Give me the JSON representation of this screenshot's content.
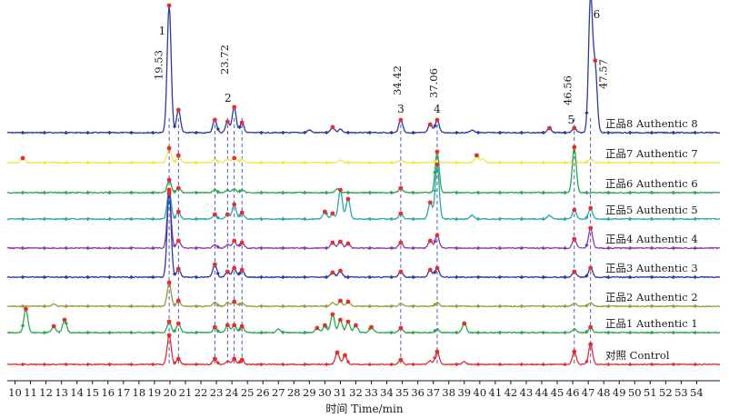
{
  "chart_data": {
    "type": "line",
    "xlabel": "时间 Time/min",
    "xlim": [
      9.5,
      55.5
    ],
    "xticks": [
      10,
      11,
      12,
      13,
      14,
      15,
      16,
      17,
      18,
      19,
      20,
      21,
      22,
      23,
      24,
      25,
      26,
      27,
      28,
      29,
      30,
      31,
      32,
      33,
      34,
      35,
      36,
      37,
      38,
      39,
      40,
      41,
      42,
      43,
      44,
      45,
      46,
      47,
      48,
      49,
      50,
      51,
      52,
      53,
      54
    ],
    "marked_retention_times": [
      {
        "peak": "1",
        "rt": 19.53,
        "label": "19.53"
      },
      {
        "peak": "2",
        "rt": 23.72,
        "label": "23.72"
      },
      {
        "peak": "3",
        "rt": 34.42,
        "label": "34.42"
      },
      {
        "peak": "4",
        "rt": 37.06,
        "label": "37.06"
      },
      {
        "peak": "5",
        "rt": 46.56,
        "label": "46.56"
      },
      {
        "peak": "6",
        "rt": 47.57,
        "label": "47.57"
      }
    ],
    "dashed_guides_at": [
      19.95,
      20.55,
      22.9,
      23.72,
      24.15,
      24.65,
      34.9,
      37.25,
      46.1,
      47.15
    ],
    "series": [
      {
        "name": "正品8 Authentic 8",
        "color": "#2e3a9c",
        "peaks": [
          [
            19.95,
            140
          ],
          [
            20.55,
            25
          ],
          [
            22.9,
            14
          ],
          [
            23.72,
            12
          ],
          [
            24.15,
            28
          ],
          [
            24.65,
            11
          ],
          [
            29.0,
            3
          ],
          [
            30.5,
            6
          ],
          [
            31.0,
            4
          ],
          [
            34.9,
            14
          ],
          [
            36.8,
            9
          ],
          [
            37.25,
            14
          ],
          [
            39.5,
            3
          ],
          [
            44.5,
            5
          ],
          [
            46.1,
            5
          ],
          [
            47.15,
            150
          ],
          [
            47.45,
            70
          ]
        ]
      },
      {
        "name": "正品7 Authentic 7",
        "color": "#f2e64a",
        "peaks": [
          [
            10.5,
            5
          ],
          [
            19.95,
            16
          ],
          [
            20.55,
            8
          ],
          [
            22.9,
            4
          ],
          [
            23.72,
            4
          ],
          [
            24.15,
            5
          ],
          [
            24.65,
            4
          ],
          [
            31.0,
            3
          ],
          [
            34.9,
            3
          ],
          [
            37.25,
            3
          ],
          [
            39.8,
            8
          ],
          [
            40.2,
            4
          ],
          [
            46.1,
            3
          ],
          [
            47.15,
            4
          ]
        ]
      },
      {
        "name": "正品6 Authentic 6",
        "color": "#2aa84a",
        "peaks": [
          [
            19.95,
            14
          ],
          [
            20.55,
            5
          ],
          [
            22.9,
            3
          ],
          [
            23.72,
            3
          ],
          [
            24.15,
            4
          ],
          [
            24.65,
            3
          ],
          [
            30.8,
            4
          ],
          [
            34.9,
            5
          ],
          [
            37.25,
            45
          ],
          [
            46.1,
            50
          ]
        ]
      },
      {
        "name": "正品5 Authentic 5",
        "color": "#2aa8b0",
        "peaks": [
          [
            19.95,
            32
          ],
          [
            20.55,
            8
          ],
          [
            22.9,
            5
          ],
          [
            23.72,
            5
          ],
          [
            24.15,
            16
          ],
          [
            24.65,
            7
          ],
          [
            30.0,
            8
          ],
          [
            30.5,
            6
          ],
          [
            31.0,
            32
          ],
          [
            31.5,
            22
          ],
          [
            34.9,
            6
          ],
          [
            36.8,
            18
          ],
          [
            37.25,
            60
          ],
          [
            39.5,
            4
          ],
          [
            44.5,
            4
          ],
          [
            46.1,
            10
          ],
          [
            47.15,
            12
          ]
        ]
      },
      {
        "name": "正品4 Authentic 4",
        "color": "#8e3aa8",
        "peaks": [
          [
            19.95,
            60
          ],
          [
            20.55,
            8
          ],
          [
            22.9,
            4
          ],
          [
            23.72,
            4
          ],
          [
            24.15,
            8
          ],
          [
            24.65,
            6
          ],
          [
            30.5,
            6
          ],
          [
            31.0,
            7
          ],
          [
            31.5,
            5
          ],
          [
            34.9,
            6
          ],
          [
            36.8,
            8
          ],
          [
            37.25,
            14
          ],
          [
            46.1,
            10
          ],
          [
            47.15,
            22
          ]
        ]
      },
      {
        "name": "正品3 Authentic 3",
        "color": "#2e3a9c",
        "peaks": [
          [
            19.95,
            95
          ],
          [
            20.55,
            9
          ],
          [
            22.9,
            14
          ],
          [
            23.72,
            6
          ],
          [
            24.15,
            10
          ],
          [
            24.65,
            8
          ],
          [
            30.5,
            5
          ],
          [
            31.0,
            7
          ],
          [
            34.9,
            6
          ],
          [
            36.8,
            8
          ],
          [
            37.25,
            10
          ],
          [
            46.1,
            6
          ],
          [
            47.15,
            10
          ]
        ]
      },
      {
        "name": "正品2 Authentic 2",
        "color": "#9a9a3a",
        "peaks": [
          [
            12.5,
            3
          ],
          [
            19.95,
            26
          ],
          [
            20.55,
            6
          ],
          [
            22.9,
            4
          ],
          [
            23.72,
            4
          ],
          [
            24.15,
            5
          ],
          [
            24.65,
            4
          ],
          [
            30.5,
            4
          ],
          [
            31.0,
            6
          ],
          [
            31.5,
            5
          ],
          [
            34.9,
            3
          ],
          [
            37.25,
            4
          ],
          [
            46.1,
            3
          ],
          [
            47.15,
            4
          ]
        ]
      },
      {
        "name": "正品1 Authentic 1",
        "color": "#2aa84a",
        "peaks": [
          [
            10.7,
            26
          ],
          [
            12.5,
            7
          ],
          [
            13.2,
            14
          ],
          [
            19.95,
            12
          ],
          [
            20.55,
            10
          ],
          [
            22.9,
            6
          ],
          [
            23.72,
            8
          ],
          [
            24.15,
            8
          ],
          [
            24.65,
            7
          ],
          [
            27.0,
            4
          ],
          [
            29.5,
            5
          ],
          [
            30.0,
            8
          ],
          [
            30.5,
            20
          ],
          [
            31.0,
            14
          ],
          [
            31.5,
            12
          ],
          [
            32.0,
            8
          ],
          [
            33.0,
            6
          ],
          [
            34.9,
            5
          ],
          [
            37.25,
            4
          ],
          [
            39.0,
            10
          ],
          [
            46.1,
            4
          ],
          [
            47.15,
            6
          ]
        ]
      },
      {
        "name": "对照 Control",
        "color": "#e03030",
        "peaks": [
          [
            19.95,
            32
          ],
          [
            20.55,
            6
          ],
          [
            22.9,
            6
          ],
          [
            23.72,
            4
          ],
          [
            24.15,
            6
          ],
          [
            24.65,
            5
          ],
          [
            30.8,
            13
          ],
          [
            31.3,
            10
          ],
          [
            34.9,
            5
          ],
          [
            36.8,
            4
          ],
          [
            37.25,
            14
          ],
          [
            39.0,
            3
          ],
          [
            46.1,
            14
          ],
          [
            47.15,
            22
          ]
        ]
      }
    ]
  }
}
